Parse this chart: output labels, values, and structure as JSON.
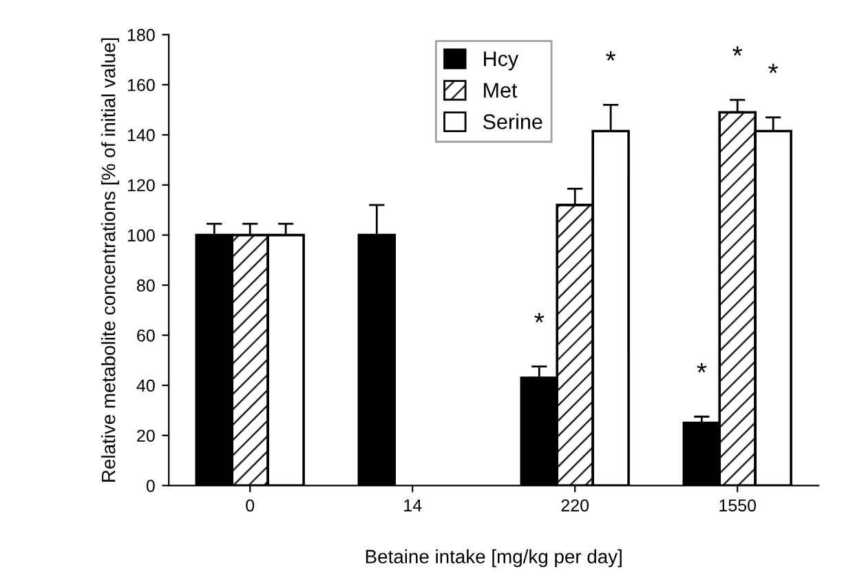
{
  "chart_data": {
    "type": "bar",
    "xlabel": "Betaine intake [mg/kg per day]",
    "ylabel": "Relative metabolite concentrations [% of initial value]",
    "categories": [
      "0",
      "14",
      "220",
      "1550"
    ],
    "series": [
      {
        "name": "Hcy",
        "color": "#000000",
        "values": [
          100,
          100,
          43,
          25
        ],
        "errors": [
          4.5,
          12,
          4.5,
          2.5
        ],
        "value_labels": [
          null,
          null,
          "*",
          "*"
        ]
      },
      {
        "name": "Met",
        "color": "#000000",
        "values": [
          100,
          null,
          112,
          149
        ],
        "errors": [
          4.5,
          null,
          6.5,
          5
        ],
        "value_labels": [
          null,
          null,
          null,
          "*"
        ]
      },
      {
        "name": "Serine",
        "color": "#ffffff",
        "values": [
          100,
          null,
          141.5,
          141.5
        ],
        "errors": [
          4.5,
          null,
          10.5,
          5.5
        ],
        "value_labels": [
          null,
          null,
          "*",
          "*"
        ]
      }
    ],
    "ylim": [
      0,
      180
    ],
    "yticks": [
      0,
      20,
      40,
      60,
      80,
      100,
      120,
      140,
      160,
      180
    ],
    "grid": false,
    "legend": "top"
  }
}
